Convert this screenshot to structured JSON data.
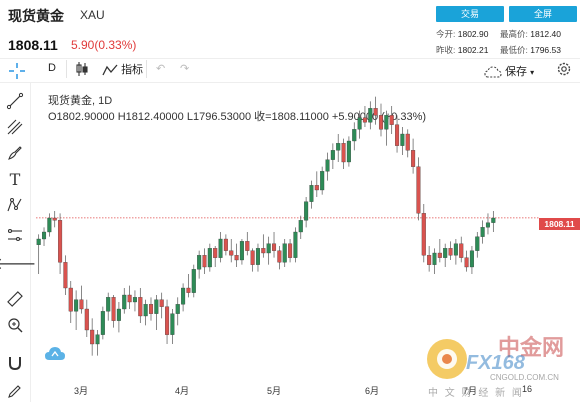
{
  "header": {
    "title": "现货黄金",
    "symbol": "XAU",
    "trade_button": "交易",
    "fullscreen_button": "全屏",
    "price": "1808.11",
    "change": "5.90(0.33%)",
    "stats": {
      "open_label": "今开:",
      "open_value": "1802.90",
      "high_label": "最高价:",
      "high_value": "1812.40",
      "prev_close_label": "昨收:",
      "prev_close_value": "1802.21",
      "low_label": "最低价:",
      "low_value": "1796.53"
    }
  },
  "toolbar": {
    "interval": "D",
    "indicator_label": "指标",
    "save_label": "保存"
  },
  "chart": {
    "legend_name": "现货黄金, 1D",
    "legend_ohlc": "O1802.90000  H1812.40000  L1796.53000  收=1808.11000  +5.90000 (+0.33%)",
    "last_price_tag": "1808.11",
    "last_price_line_color": "#e04a4a",
    "up_color": "#2e8b57",
    "down_color": "#d9534f",
    "x_axis_labels": [
      "3月",
      "4月",
      "5月",
      "6月",
      "7月",
      "16"
    ],
    "watermark": {
      "brand_cn": "中金网",
      "brand_en": "FX168",
      "site": "CNGOLD.COM.CN",
      "slogan": "中 文 财 经 新 闻"
    }
  },
  "chart_data": {
    "type": "candlestick",
    "title": "现货黄金, 1D",
    "x": [
      "3月",
      "4月",
      "5月",
      "6月",
      "7月"
    ],
    "y_range": [
      1676,
      1916
    ],
    "last_price": 1808.11,
    "ohlc_series_approx": [
      [
        1785,
        1794,
        1760,
        1790
      ],
      [
        1790,
        1800,
        1784,
        1796
      ],
      [
        1796,
        1812,
        1792,
        1808
      ],
      [
        1808,
        1814,
        1800,
        1806
      ],
      [
        1806,
        1812,
        1760,
        1770
      ],
      [
        1770,
        1776,
        1742,
        1748
      ],
      [
        1748,
        1754,
        1718,
        1728
      ],
      [
        1728,
        1746,
        1712,
        1738
      ],
      [
        1738,
        1750,
        1726,
        1730
      ],
      [
        1730,
        1738,
        1706,
        1712
      ],
      [
        1712,
        1722,
        1690,
        1700
      ],
      [
        1700,
        1712,
        1690,
        1708
      ],
      [
        1708,
        1732,
        1704,
        1728
      ],
      [
        1728,
        1744,
        1720,
        1740
      ],
      [
        1740,
        1742,
        1714,
        1720
      ],
      [
        1720,
        1736,
        1710,
        1730
      ],
      [
        1730,
        1748,
        1726,
        1742
      ],
      [
        1742,
        1750,
        1730,
        1736
      ],
      [
        1736,
        1746,
        1728,
        1740
      ],
      [
        1740,
        1748,
        1718,
        1724
      ],
      [
        1724,
        1738,
        1716,
        1734
      ],
      [
        1734,
        1740,
        1720,
        1726
      ],
      [
        1726,
        1742,
        1712,
        1738
      ],
      [
        1738,
        1744,
        1722,
        1732
      ],
      [
        1732,
        1738,
        1700,
        1708
      ],
      [
        1708,
        1730,
        1700,
        1726
      ],
      [
        1726,
        1740,
        1716,
        1734
      ],
      [
        1734,
        1752,
        1728,
        1748
      ],
      [
        1748,
        1760,
        1740,
        1744
      ],
      [
        1744,
        1768,
        1740,
        1764
      ],
      [
        1764,
        1780,
        1756,
        1776
      ],
      [
        1776,
        1782,
        1760,
        1766
      ],
      [
        1766,
        1786,
        1762,
        1782
      ],
      [
        1782,
        1784,
        1766,
        1774
      ],
      [
        1774,
        1796,
        1770,
        1790
      ],
      [
        1790,
        1794,
        1776,
        1780
      ],
      [
        1780,
        1790,
        1770,
        1776
      ],
      [
        1776,
        1786,
        1766,
        1772
      ],
      [
        1772,
        1790,
        1768,
        1788
      ],
      [
        1788,
        1796,
        1776,
        1780
      ],
      [
        1780,
        1782,
        1762,
        1768
      ],
      [
        1768,
        1786,
        1762,
        1782
      ],
      [
        1782,
        1794,
        1774,
        1778
      ],
      [
        1778,
        1792,
        1768,
        1786
      ],
      [
        1786,
        1796,
        1774,
        1780
      ],
      [
        1780,
        1784,
        1764,
        1770
      ],
      [
        1770,
        1790,
        1766,
        1786
      ],
      [
        1786,
        1790,
        1770,
        1774
      ],
      [
        1774,
        1800,
        1770,
        1796
      ],
      [
        1796,
        1810,
        1790,
        1806
      ],
      [
        1806,
        1826,
        1800,
        1822
      ],
      [
        1822,
        1840,
        1816,
        1836
      ],
      [
        1836,
        1848,
        1826,
        1832
      ],
      [
        1832,
        1852,
        1828,
        1848
      ],
      [
        1848,
        1864,
        1840,
        1858
      ],
      [
        1858,
        1872,
        1850,
        1866
      ],
      [
        1866,
        1880,
        1856,
        1872
      ],
      [
        1872,
        1876,
        1850,
        1856
      ],
      [
        1856,
        1878,
        1852,
        1874
      ],
      [
        1874,
        1890,
        1866,
        1884
      ],
      [
        1884,
        1900,
        1876,
        1894
      ],
      [
        1894,
        1904,
        1886,
        1890
      ],
      [
        1890,
        1908,
        1884,
        1902
      ],
      [
        1902,
        1912,
        1888,
        1896
      ],
      [
        1896,
        1906,
        1878,
        1884
      ],
      [
        1884,
        1900,
        1870,
        1896
      ],
      [
        1896,
        1904,
        1880,
        1888
      ],
      [
        1888,
        1896,
        1864,
        1870
      ],
      [
        1870,
        1886,
        1862,
        1880
      ],
      [
        1880,
        1884,
        1860,
        1866
      ],
      [
        1866,
        1876,
        1846,
        1852
      ],
      [
        1852,
        1860,
        1806,
        1812
      ],
      [
        1812,
        1820,
        1770,
        1776
      ],
      [
        1776,
        1784,
        1762,
        1768
      ],
      [
        1768,
        1782,
        1760,
        1778
      ],
      [
        1778,
        1790,
        1770,
        1774
      ],
      [
        1774,
        1786,
        1766,
        1782
      ],
      [
        1782,
        1788,
        1772,
        1776
      ],
      [
        1776,
        1790,
        1768,
        1786
      ],
      [
        1786,
        1792,
        1770,
        1774
      ],
      [
        1774,
        1780,
        1762,
        1766
      ],
      [
        1766,
        1784,
        1760,
        1780
      ],
      [
        1780,
        1796,
        1774,
        1792
      ],
      [
        1792,
        1806,
        1786,
        1800
      ],
      [
        1800,
        1812,
        1794,
        1804
      ],
      [
        1804,
        1814,
        1796,
        1808
      ]
    ]
  }
}
